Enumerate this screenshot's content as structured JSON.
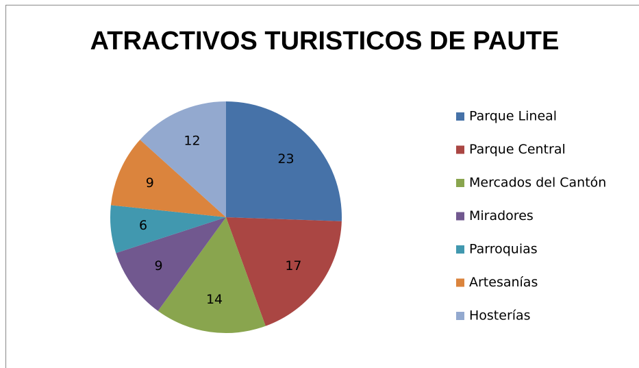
{
  "chart_data": {
    "type": "pie",
    "title": "ATRACTIVOS TURISTICOS DE PAUTE",
    "categories": [
      "Parque Lineal",
      "Parque Central",
      "Mercados del Cantón",
      "Miradores",
      "Parroquias",
      "Artesanías",
      "Hosterías"
    ],
    "values": [
      23,
      17,
      14,
      9,
      6,
      9,
      12
    ],
    "colors": [
      "#4672A8",
      "#AA4643",
      "#89A54E",
      "#71588F",
      "#4198AF",
      "#DB843D",
      "#93A9CF"
    ],
    "legend": "right"
  }
}
